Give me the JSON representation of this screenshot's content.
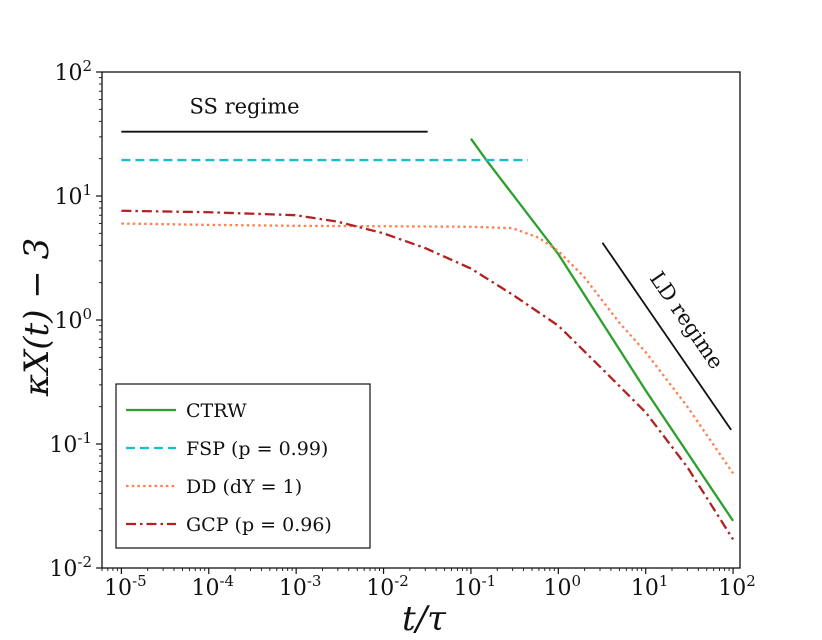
{
  "chart_data": {
    "type": "line",
    "xlabel": "t/τ",
    "ylabel": "κX(t) − 3",
    "xscale": "log",
    "yscale": "log",
    "xlim": [
      6e-06,
      120
    ],
    "ylim": [
      0.01,
      100
    ],
    "xticks": [
      {
        "value": 1e-05,
        "base": "10",
        "exp": "-5"
      },
      {
        "value": 0.0001,
        "base": "10",
        "exp": "-4"
      },
      {
        "value": 0.001,
        "base": "10",
        "exp": "-3"
      },
      {
        "value": 0.01,
        "base": "10",
        "exp": "-2"
      },
      {
        "value": 0.1,
        "base": "10",
        "exp": "-1"
      },
      {
        "value": 1,
        "base": "10",
        "exp": "0"
      },
      {
        "value": 10,
        "base": "10",
        "exp": "1"
      },
      {
        "value": 100,
        "base": "10",
        "exp": "2"
      }
    ],
    "yticks": [
      {
        "value": 0.01,
        "base": "10",
        "exp": "-2"
      },
      {
        "value": 0.1,
        "base": "10",
        "exp": "-1"
      },
      {
        "value": 1,
        "base": "10",
        "exp": "0"
      },
      {
        "value": 10,
        "base": "10",
        "exp": "1"
      },
      {
        "value": 100,
        "base": "10",
        "exp": "2"
      }
    ],
    "grid": false,
    "legend_position": "bottom-left",
    "series": [
      {
        "name": "CTRW",
        "color": "#2ca02c",
        "dash": "solid",
        "x": [
          0.1,
          0.15,
          1,
          10,
          100
        ],
        "y": [
          29,
          19.5,
          3.4,
          0.27,
          0.024
        ]
      },
      {
        "name": "FSP (p = 0.99)",
        "color": "#17becf",
        "dash": "dashed",
        "x": [
          1e-05,
          0.45
        ],
        "y": [
          19.5,
          19.5
        ]
      },
      {
        "name": "DD (dY = 1)",
        "color": "#ff7f50",
        "dash": "dotted",
        "x": [
          1e-05,
          0.0001,
          0.001,
          0.01,
          0.1,
          0.3,
          0.6,
          1,
          2,
          5,
          10,
          30,
          100
        ],
        "y": [
          6.0,
          5.85,
          5.75,
          5.7,
          5.65,
          5.5,
          4.6,
          3.6,
          2.2,
          0.95,
          0.55,
          0.2,
          0.058
        ]
      },
      {
        "name": "GCP (p = 0.96)",
        "color": "#b22222",
        "dash": "dashdot",
        "x": [
          1e-05,
          0.0001,
          0.001,
          0.003,
          0.01,
          0.03,
          0.1,
          0.3,
          1,
          3,
          10,
          30,
          100
        ],
        "y": [
          7.6,
          7.4,
          7.0,
          6.2,
          5.0,
          3.8,
          2.6,
          1.6,
          0.9,
          0.42,
          0.18,
          0.065,
          0.017
        ]
      }
    ],
    "annotations": [
      {
        "text": "SS regime",
        "x1": 1e-05,
        "x2": 0.032,
        "y": 33
      },
      {
        "text": "LD regime",
        "x1": 3.2,
        "x2": 95,
        "y1": 4.2,
        "y2": 0.13
      }
    ]
  }
}
